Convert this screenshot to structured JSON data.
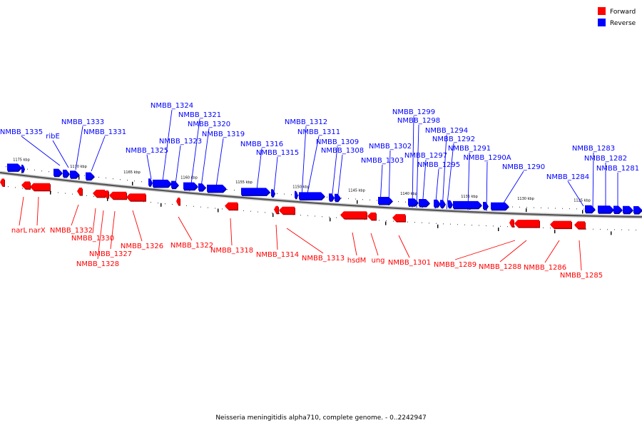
{
  "legend": {
    "forward": {
      "label": "Forward",
      "color": "#ff0000"
    },
    "reverse": {
      "label": "Reverse",
      "color": "#0000ff"
    }
  },
  "caption": "Neisseria meningitidis alpha710, complete genome. - 0..2242947",
  "scale_ticks": [
    "1175 kbp",
    "1170 kbp",
    "1165 kbp",
    "1160 kbp",
    "1155 kbp",
    "1150 kbp",
    "1145 kbp",
    "1140 kbp",
    "1135 kbp",
    "1130 kbp",
    "1125 kbp"
  ],
  "reverse_genes": [
    "NMBB_1335",
    "ribE",
    "NMBB_1333",
    "NMBB_1331",
    "NMBB_1325",
    "NMBB_1324",
    "NMBB_1323",
    "NMBB_1321",
    "NMBB_1320",
    "NMBB_1319",
    "NMBB_1316",
    "NMBB_1315",
    "NMBB_1312",
    "NMBB_1311",
    "NMBB_1309",
    "NMBB_1308",
    "NMBB_1303",
    "NMBB_1302",
    "NMBB_1299",
    "NMBB_1298",
    "NMBB_1297",
    "NMBB_1295",
    "NMBB_1294",
    "NMBB_1292",
    "NMBB_1291",
    "NMBB_1290A",
    "NMBB_1290",
    "NMBB_1284",
    "NMBB_1283",
    "NMBB_1282",
    "NMBB_1281"
  ],
  "forward_genes": [
    "narL",
    "narX",
    "NMBB_1332",
    "NMBB_1330",
    "NMBB_1328",
    "NMBB_1327",
    "NMBB_1326",
    "NMBB_1322",
    "NMBB_1318",
    "NMBB_1314",
    "NMBB_1313",
    "hsdM",
    "ung",
    "NMBB_1301",
    "NMBB_1289",
    "NMBB_1288",
    "NMBB_1286",
    "NMBB_1285"
  ]
}
